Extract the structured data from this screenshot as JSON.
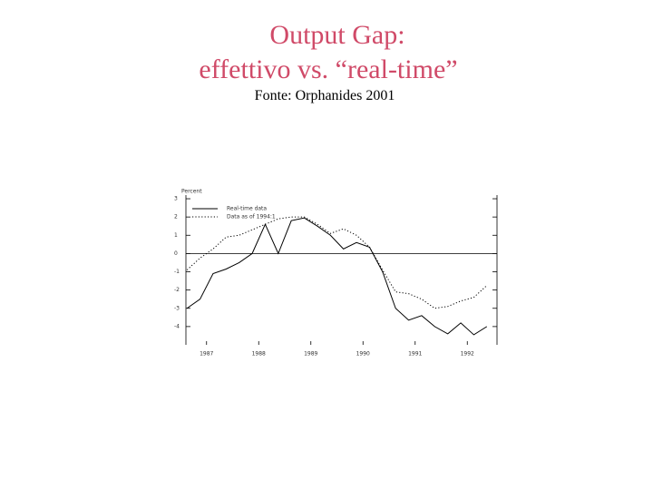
{
  "chart_data": {
    "type": "line",
    "title": "Output Gap:",
    "subtitle": "effettivo vs. “real-time”",
    "source": "Fonte: Orphanides 2001",
    "y_label": "Percent",
    "x": [
      1986.625,
      1986.875,
      1987.125,
      1987.375,
      1987.625,
      1987.875,
      1988.125,
      1988.375,
      1988.625,
      1988.875,
      1989.125,
      1989.375,
      1989.625,
      1989.875,
      1990.125,
      1990.375,
      1990.625,
      1990.875,
      1991.125,
      1991.375,
      1991.625,
      1991.875,
      1992.125,
      1992.375
    ],
    "series": [
      {
        "name": "Real-time data",
        "color": "#000000",
        "dash": "solid",
        "values": [
          -3.0,
          -2.5,
          -1.1,
          -0.85,
          -0.5,
          0.0,
          1.6,
          0.0,
          1.8,
          1.95,
          1.5,
          1.0,
          0.25,
          0.6,
          0.35,
          -1.0,
          -3.0,
          -3.65,
          -3.4,
          -4.0,
          -4.4,
          -3.8,
          -4.45,
          -4.0
        ]
      },
      {
        "name": "Data as of 1994:1",
        "color": "#000000",
        "dash": "dotted",
        "values": [
          -0.9,
          -0.25,
          0.25,
          0.9,
          1.0,
          1.3,
          1.6,
          1.9,
          2.0,
          2.0,
          1.6,
          1.1,
          1.35,
          1.0,
          0.35,
          -0.9,
          -2.1,
          -2.2,
          -2.5,
          -3.0,
          -2.9,
          -2.6,
          -2.4,
          -1.75
        ]
      }
    ],
    "xlim": [
      1986.5,
      1992.5
    ],
    "xticks": [
      1987,
      1988,
      1989,
      1990,
      1991,
      1992
    ],
    "ylim": [
      -5,
      3.2
    ],
    "yticks": [
      3,
      2,
      1,
      0,
      -1,
      -2,
      -3,
      -4
    ],
    "zero_line": true,
    "legend": "upper left"
  }
}
